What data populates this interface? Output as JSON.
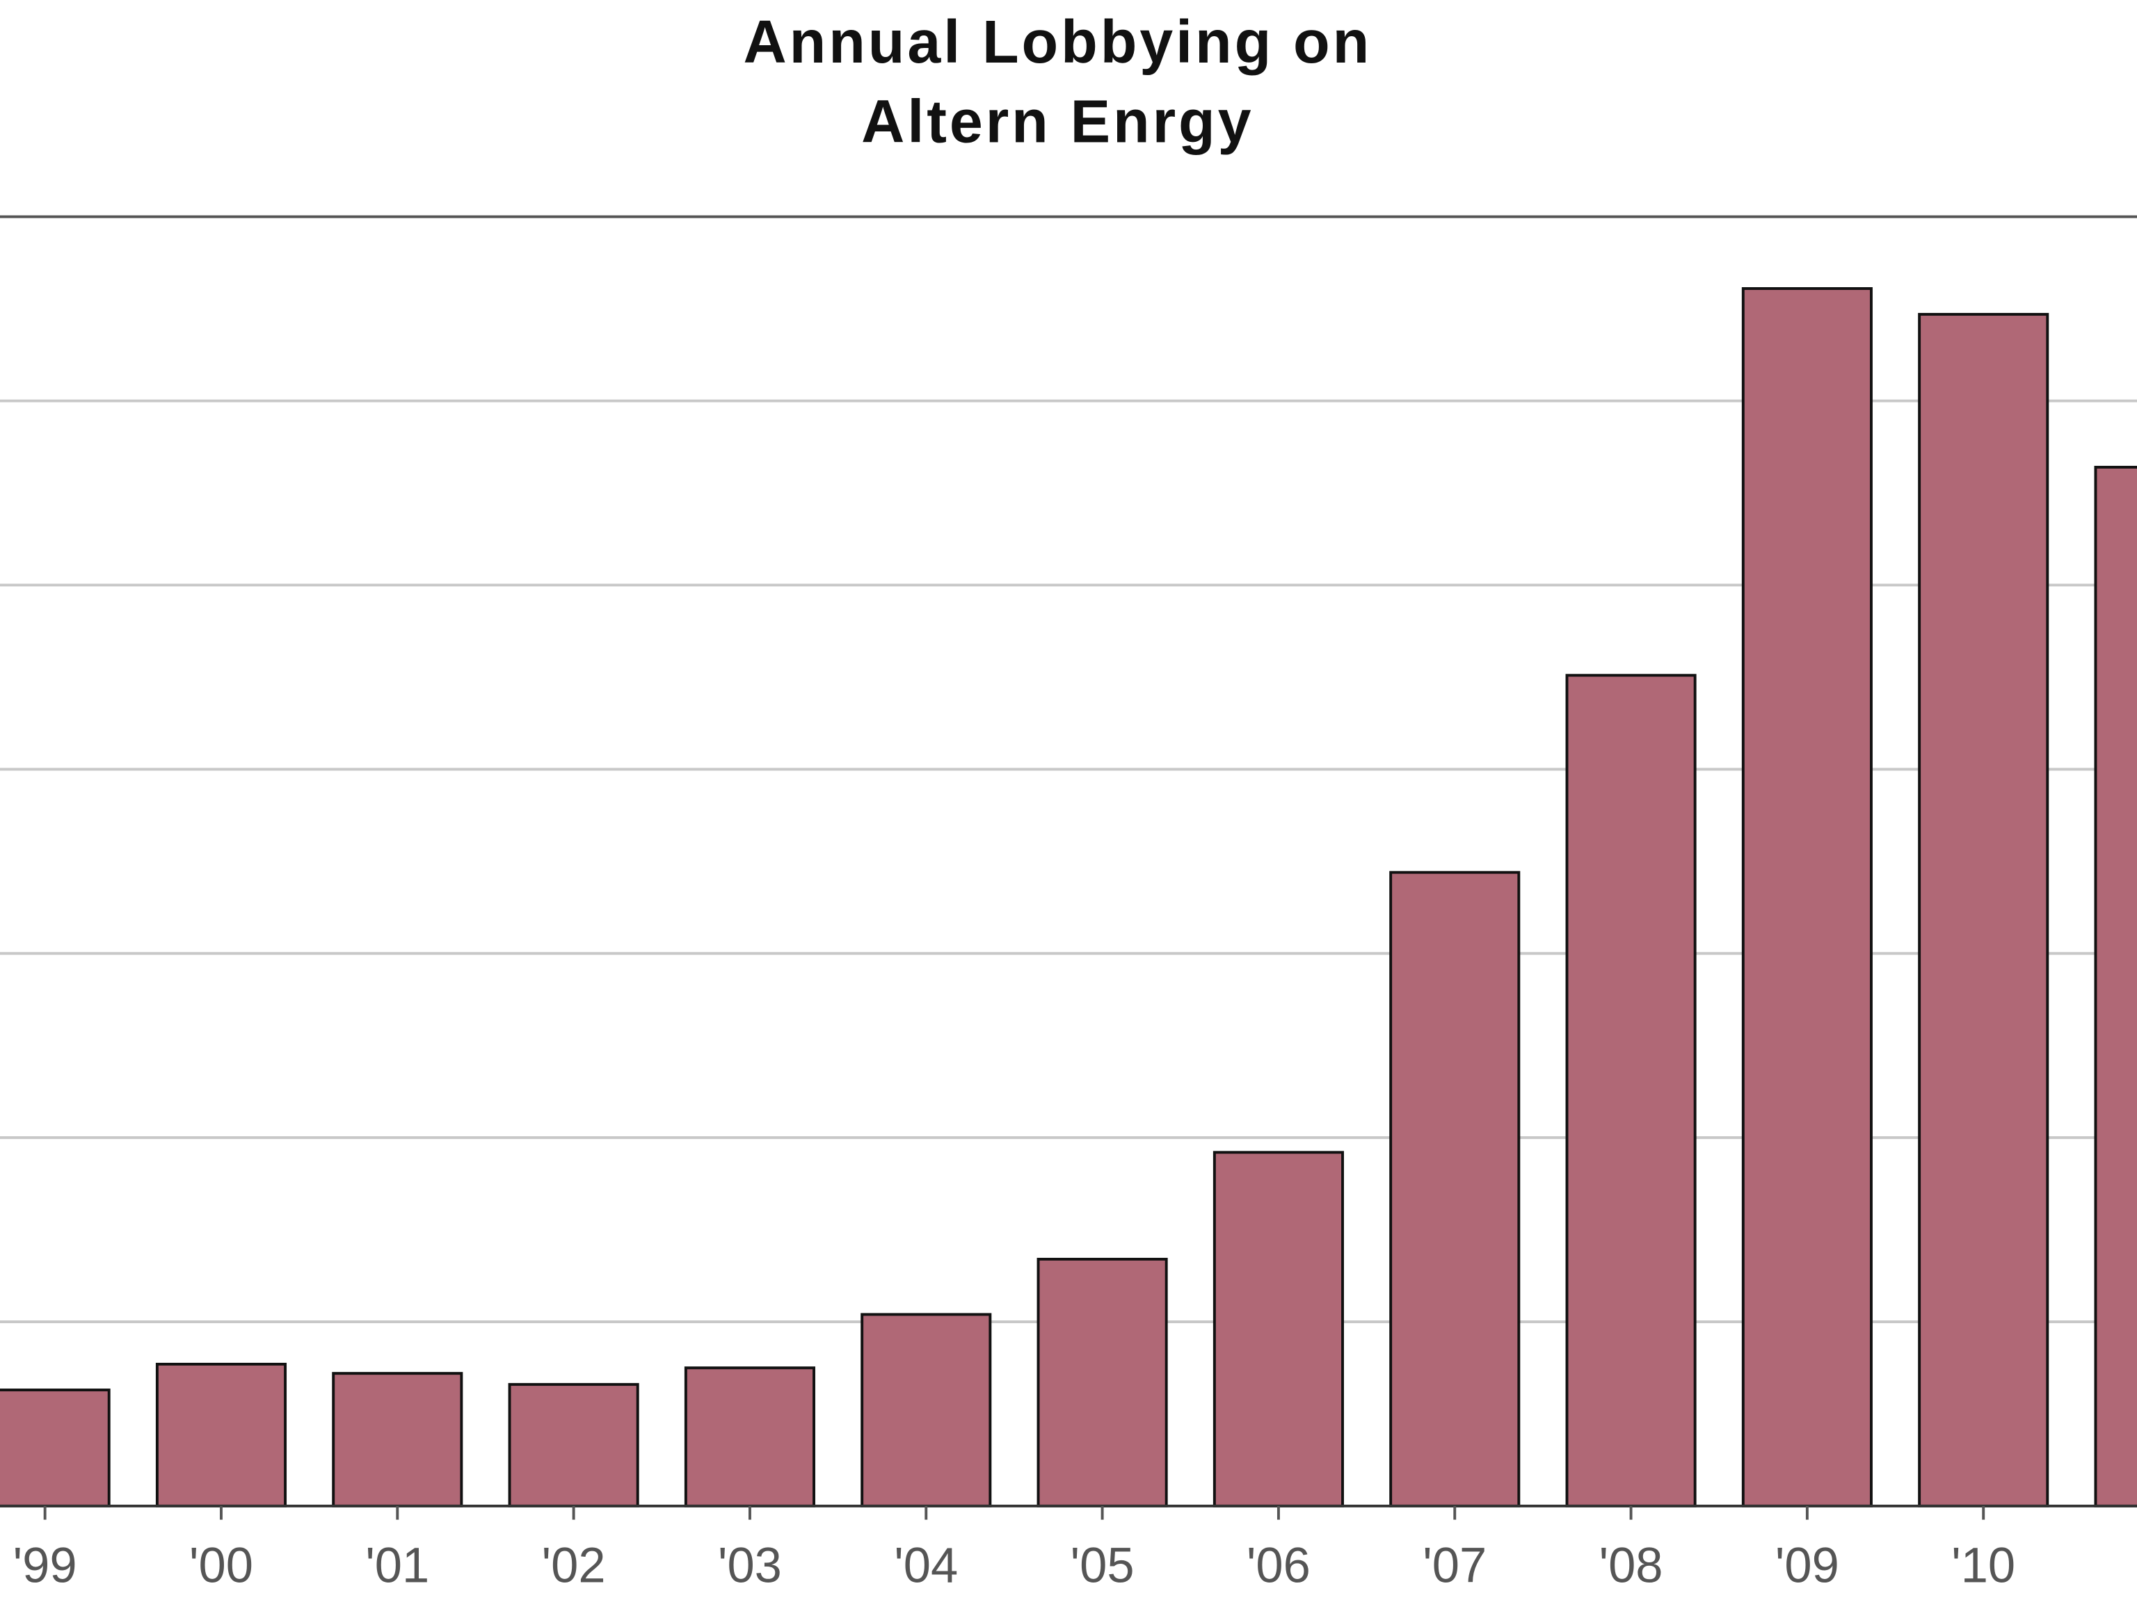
{
  "chart_data": {
    "type": "bar",
    "title": [
      "Annual Lobbying on",
      "Altern Enrgy"
    ],
    "categories": [
      "'99",
      "'00",
      "'01",
      "'02",
      "'03",
      "'04",
      "'05",
      "'06",
      "'07",
      "'08",
      "'09",
      "'10",
      null
    ],
    "values": [
      0.63,
      0.77,
      0.72,
      0.66,
      0.75,
      1.04,
      1.34,
      1.92,
      3.44,
      4.51,
      6.61,
      6.47,
      5.64
    ],
    "color": "#b06876",
    "ylim": [
      0,
      7
    ],
    "yticks": [
      1,
      2,
      3,
      4,
      5,
      6
    ],
    "grid": true
  }
}
